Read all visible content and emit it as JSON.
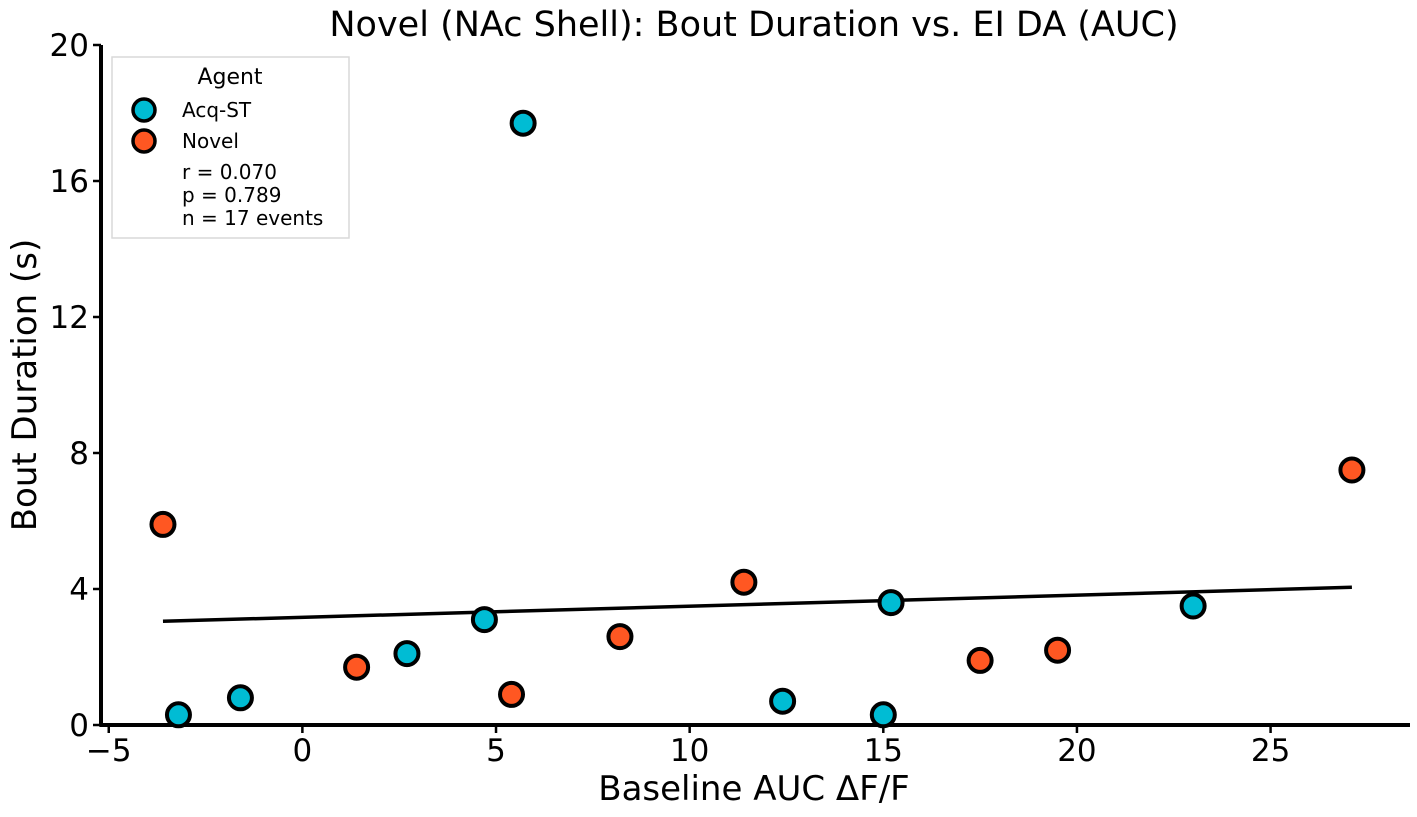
{
  "chart_data": {
    "type": "scatter",
    "title": "Novel (NAc Shell): Bout Duration vs. EI DA (AUC)",
    "xlabel": "Baseline AUC ΔF/F",
    "ylabel": "Bout Duration (s)",
    "xlim": [
      -5.2,
      28.6
    ],
    "ylim": [
      0,
      20
    ],
    "xticks": [
      -5,
      0,
      5,
      10,
      15,
      20,
      25
    ],
    "yticks": [
      0,
      4,
      8,
      12,
      16,
      20
    ],
    "grid": false,
    "legend": {
      "title": "Agent",
      "placement": "upper-left",
      "stats": [
        "r = 0.070",
        "p = 0.789",
        "n = 17 events"
      ]
    },
    "series": [
      {
        "name": "Acq-ST",
        "color": "#00bcd4",
        "points": [
          {
            "x": -3.2,
            "y": 0.3
          },
          {
            "x": -1.6,
            "y": 0.8
          },
          {
            "x": 2.7,
            "y": 2.1
          },
          {
            "x": 4.7,
            "y": 3.1
          },
          {
            "x": 5.7,
            "y": 17.7
          },
          {
            "x": 12.4,
            "y": 0.7
          },
          {
            "x": 15.0,
            "y": 0.3
          },
          {
            "x": 15.2,
            "y": 3.6
          },
          {
            "x": 23.0,
            "y": 3.5
          }
        ]
      },
      {
        "name": "Novel",
        "color": "#ff5722",
        "points": [
          {
            "x": -3.6,
            "y": 5.9
          },
          {
            "x": 1.4,
            "y": 1.7
          },
          {
            "x": 5.4,
            "y": 0.9
          },
          {
            "x": 8.2,
            "y": 2.6
          },
          {
            "x": 11.4,
            "y": 4.2
          },
          {
            "x": 17.5,
            "y": 1.9
          },
          {
            "x": 19.5,
            "y": 2.2
          },
          {
            "x": 27.1,
            "y": 7.5
          }
        ]
      }
    ],
    "regression": {
      "x": [
        -3.6,
        27.1
      ],
      "y": [
        3.05,
        4.05
      ],
      "color": "#000000"
    }
  }
}
